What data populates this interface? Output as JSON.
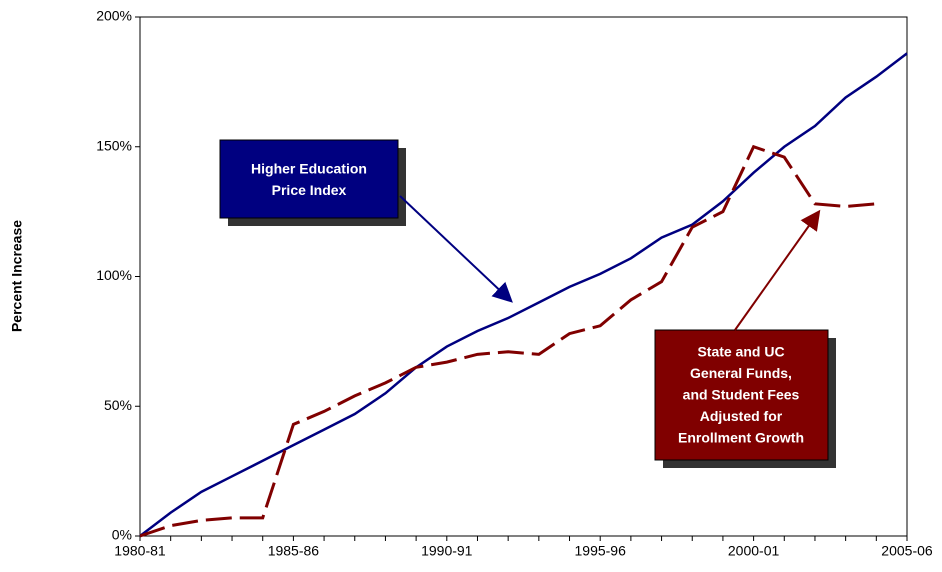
{
  "chart_data": {
    "type": "line",
    "y_label": "Percent Increase",
    "categories": [
      "1980-81",
      null,
      null,
      null,
      null,
      "1985-86",
      null,
      null,
      null,
      null,
      "1990-91",
      null,
      null,
      null,
      null,
      "1995-96",
      null,
      null,
      null,
      null,
      "2000-01",
      null,
      null,
      null,
      null,
      "2005-06"
    ],
    "series": [
      {
        "name": "Higher Education Price Index",
        "color": "#000080",
        "style": "solid",
        "values": [
          0,
          9,
          17,
          23,
          29,
          35,
          41,
          47,
          55,
          65,
          73,
          79,
          84,
          90,
          96,
          101,
          107,
          115,
          120,
          129,
          140,
          150,
          158,
          169,
          177,
          186
        ]
      },
      {
        "name": "State and UC General Funds, and Student Fees Adjusted for Enrollment Growth",
        "color": "#800000",
        "style": "dashed",
        "values": [
          0,
          4,
          6,
          7,
          7,
          43,
          48,
          54,
          59,
          65,
          67,
          70,
          71,
          70,
          78,
          81,
          91,
          98,
          119,
          125,
          150,
          146,
          128,
          127,
          128,
          null
        ]
      }
    ],
    "annotations": [
      {
        "lines": [
          "Higher Education",
          "Price Index"
        ],
        "color": "#000080"
      },
      {
        "lines": [
          "State and UC",
          "General Funds,",
          "and Student Fees",
          "Adjusted for",
          "Enrollment Growth"
        ],
        "color": "#800000"
      }
    ],
    "ylim": [
      0,
      200
    ],
    "yticks": [
      {
        "value": 0,
        "label": "0%"
      },
      {
        "value": 50,
        "label": "50%"
      },
      {
        "value": 100,
        "label": "100%"
      },
      {
        "value": 150,
        "label": "150%"
      },
      {
        "value": 200,
        "label": "200%"
      }
    ]
  }
}
